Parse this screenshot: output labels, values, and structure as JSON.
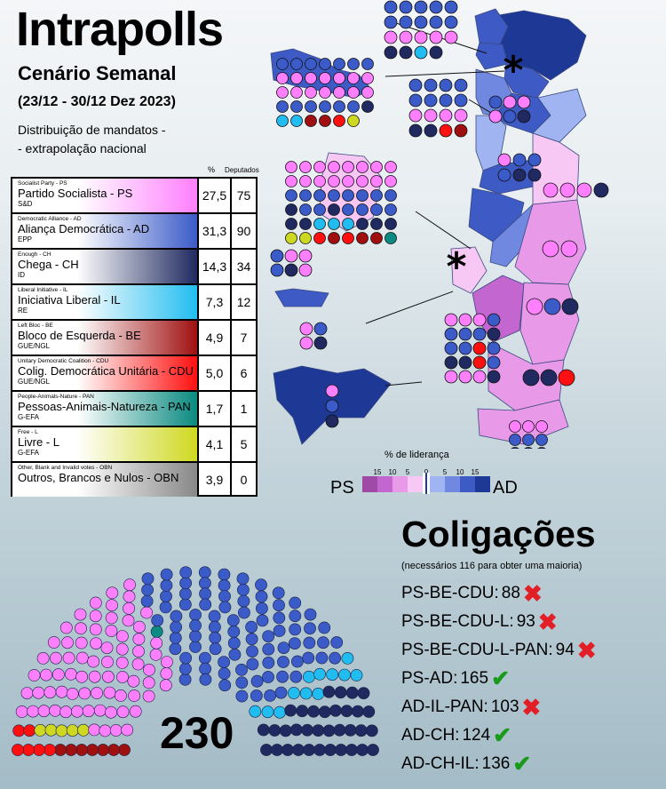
{
  "header": {
    "title": "Intrapolls",
    "subtitle": "Cenário Semanal",
    "date_range": "(23/12 - 30/12 Dez 2023)",
    "desc_line1": "Distribuição de mandatos -",
    "desc_line2": "- extrapolação nacional"
  },
  "table": {
    "col_pct": "%",
    "col_seats": "Deputados"
  },
  "parties": [
    {
      "en": "Socialist Party - PS",
      "pt": "Partido Socialista - PS",
      "group": "S&D",
      "pct": "27,5",
      "seats": "75",
      "color": "#ff80ff"
    },
    {
      "en": "Democratic Alliance - AD",
      "pt": "Aliança Democrática - AD",
      "group": "EPP",
      "pct": "31,3",
      "seats": "90",
      "color": "#3b5bc8"
    },
    {
      "en": "Enough - CH",
      "pt": "Chega - CH",
      "group": "ID",
      "pct": "14,3",
      "seats": "34",
      "color": "#202a60"
    },
    {
      "en": "Liberal Initiative - IL",
      "pt": "Iniciativa Liberal - IL",
      "group": "RE",
      "pct": "7,3",
      "seats": "12",
      "color": "#22bdf0"
    },
    {
      "en": "Left Bloc - BE",
      "pt": "Bloco de Esquerda - BE",
      "group": "GUE/NGL",
      "pct": "4,9",
      "seats": "7",
      "color": "#a01010"
    },
    {
      "en": "Unitary Democratic Coalition - CDU",
      "pt": "Colig. Democrática Unitária - CDU",
      "group": "GUE/NGL",
      "pct": "5,0",
      "seats": "6",
      "color": "#ff1010"
    },
    {
      "en": "People-Animals-Nature - PAN",
      "pt": "Pessoas-Animais-Natureza - PAN",
      "group": "G-EFA",
      "pct": "1,7",
      "seats": "1",
      "color": "#0a8a80"
    },
    {
      "en": "Free - L",
      "pt": "Livre - L",
      "group": "G-EFA",
      "pct": "4,1",
      "seats": "5",
      "color": "#cfd820"
    },
    {
      "en": "Other, Blank and Invalid votes - OBN",
      "pt": "Outros, Brancos e Nulos - OBN",
      "group": "",
      "pct": "3,9",
      "seats": "0",
      "color": "#888888"
    }
  ],
  "map_legend": {
    "title": "% de liderança",
    "left_label": "PS",
    "right_label": "AD",
    "ticks": [
      "15",
      "10",
      "5",
      "0",
      "5",
      "10",
      "15"
    ],
    "colors_ps": [
      "#a04aa8",
      "#c466d0",
      "#e89ae8",
      "#f8c8f4"
    ],
    "colors_ad": [
      "#9fb4f0",
      "#7088e0",
      "#3e5ac4",
      "#1e3896"
    ]
  },
  "coalitions": {
    "title": "Coligações",
    "note": "(necessários 116 para obter uma maioria)",
    "items": [
      {
        "label": "PS-BE-CDU:",
        "seats": "88",
        "majority": false
      },
      {
        "label": "PS-BE-CDU-L:",
        "seats": "93",
        "majority": false
      },
      {
        "label": "PS-BE-CDU-L-PAN:",
        "seats": "94",
        "majority": false
      },
      {
        "label": "PS-AD:",
        "seats": "165",
        "majority": true
      },
      {
        "label": "AD-IL-PAN:",
        "seats": "103",
        "majority": false
      },
      {
        "label": "AD-CH:",
        "seats": "124",
        "majority": true
      },
      {
        "label": "AD-CH-IL:",
        "seats": "136",
        "majority": true
      }
    ]
  },
  "parliament": {
    "total": "230"
  },
  "chart_data": {
    "type": "parliament",
    "total_seats": 230,
    "majority": 116,
    "series": [
      {
        "name": "BE",
        "seats": 7
      },
      {
        "name": "CDU",
        "seats": 6
      },
      {
        "name": "L",
        "seats": 5
      },
      {
        "name": "PS",
        "seats": 75
      },
      {
        "name": "PAN",
        "seats": 1
      },
      {
        "name": "AD",
        "seats": 90
      },
      {
        "name": "IL",
        "seats": 12
      },
      {
        "name": "CH",
        "seats": 34
      }
    ]
  }
}
